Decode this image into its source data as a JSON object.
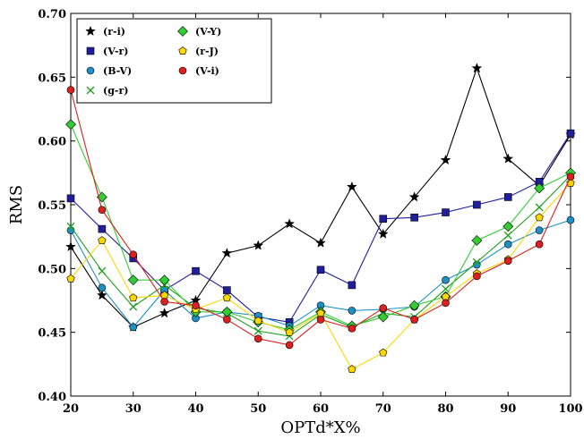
{
  "chart_data": {
    "type": "line",
    "title": "",
    "xlabel": "OPTd*X%",
    "ylabel": "RMS",
    "xlim": [
      20,
      100
    ],
    "ylim": [
      0.4,
      0.7
    ],
    "xticks": [
      20,
      30,
      40,
      50,
      60,
      70,
      80,
      90,
      100
    ],
    "yticks": [
      0.4,
      0.45,
      0.5,
      0.55,
      0.6,
      0.65,
      0.7
    ],
    "xtick_labels": [
      "20",
      "30",
      "40",
      "50",
      "60",
      "70",
      "80",
      "90",
      "100"
    ],
    "ytick_labels": [
      "0.40",
      "0.45",
      "0.50",
      "0.55",
      "0.60",
      "0.65",
      "0.70"
    ],
    "grid": false,
    "legend_position": "top-left",
    "x": [
      20,
      25,
      30,
      35,
      40,
      45,
      50,
      55,
      60,
      65,
      70,
      75,
      80,
      85,
      90,
      95,
      100
    ],
    "series": [
      {
        "name": "(r-i)",
        "color": "#000000",
        "marker": "star",
        "values": [
          0.517,
          0.479,
          0.454,
          0.465,
          0.475,
          0.512,
          0.518,
          0.535,
          0.52,
          0.564,
          0.527,
          0.556,
          0.585,
          0.657,
          0.586,
          0.565,
          0.605
        ]
      },
      {
        "name": "(V-r)",
        "color": "#1f1f9e",
        "marker": "square",
        "values": [
          0.555,
          0.531,
          0.508,
          0.483,
          0.498,
          0.483,
          0.462,
          0.458,
          0.499,
          0.487,
          0.539,
          0.54,
          0.544,
          0.55,
          0.556,
          0.568,
          0.606
        ]
      },
      {
        "name": "(B-V)",
        "color": "#1e90c8",
        "marker": "circle",
        "values": [
          0.53,
          0.485,
          0.454,
          0.483,
          0.461,
          0.466,
          0.463,
          0.455,
          0.471,
          0.467,
          0.468,
          0.47,
          0.491,
          0.503,
          0.519,
          0.53,
          0.538
        ]
      },
      {
        "name": "(g-r)",
        "color": "#1ea01e",
        "marker": "x",
        "values": [
          0.533,
          0.498,
          0.47,
          0.487,
          0.469,
          0.465,
          0.451,
          0.447,
          0.464,
          0.454,
          0.465,
          0.462,
          0.484,
          0.505,
          0.526,
          0.548,
          0.573
        ]
      },
      {
        "name": "(V-Y)",
        "color": "#32cd32",
        "marker": "diamond",
        "values": [
          0.613,
          0.556,
          0.491,
          0.491,
          0.466,
          0.466,
          0.458,
          0.452,
          0.466,
          0.455,
          0.462,
          0.471,
          0.478,
          0.522,
          0.533,
          0.563,
          0.575
        ]
      },
      {
        "name": "(r-J)",
        "color": "#ffd700",
        "marker": "pentagon",
        "values": [
          0.492,
          0.522,
          0.477,
          0.479,
          0.468,
          0.477,
          0.459,
          0.45,
          0.465,
          0.421,
          0.434,
          0.46,
          0.478,
          0.496,
          0.507,
          0.54,
          0.567
        ]
      },
      {
        "name": "(V-i)",
        "color": "#dd1f1f",
        "marker": "circle",
        "values": [
          0.64,
          0.546,
          0.511,
          0.474,
          0.471,
          0.46,
          0.445,
          0.44,
          0.46,
          0.453,
          0.469,
          0.46,
          0.473,
          0.494,
          0.506,
          0.519,
          0.572
        ]
      }
    ]
  }
}
